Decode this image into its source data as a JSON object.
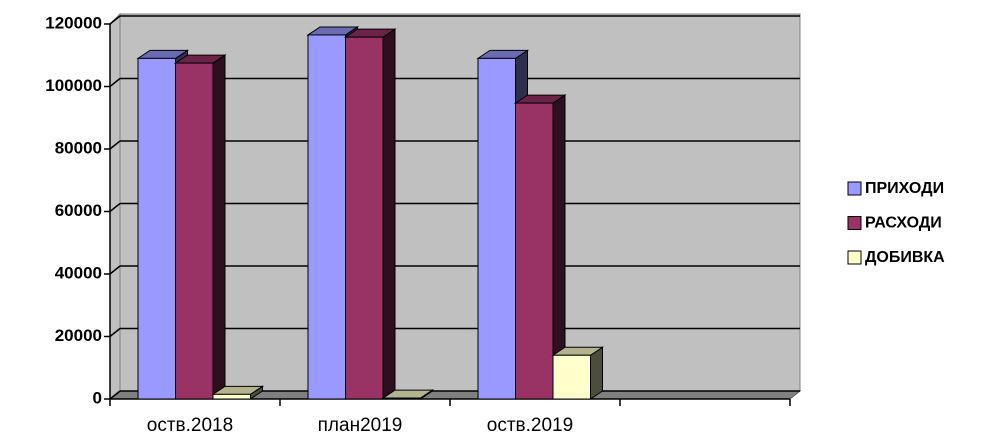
{
  "chart_data": {
    "type": "bar3d",
    "categories": [
      "оств.2018",
      "план2019",
      "оств.2019",
      null
    ],
    "series": [
      {
        "name": "ПРИХОДИ",
        "color": "#9999ff",
        "values": [
          109000,
          116500,
          109000,
          null
        ]
      },
      {
        "name": "РАСХОДИ",
        "color": "#993366",
        "values": [
          107500,
          115800,
          94700,
          null
        ]
      },
      {
        "name": "ДОБИВКА",
        "color": "#ffffcc",
        "values": [
          1500,
          300,
          14000,
          null
        ]
      }
    ],
    "ylim": [
      0,
      120000
    ],
    "yticks": [
      0,
      20000,
      40000,
      60000,
      80000,
      100000,
      120000
    ],
    "grid": true,
    "legend": "right"
  }
}
